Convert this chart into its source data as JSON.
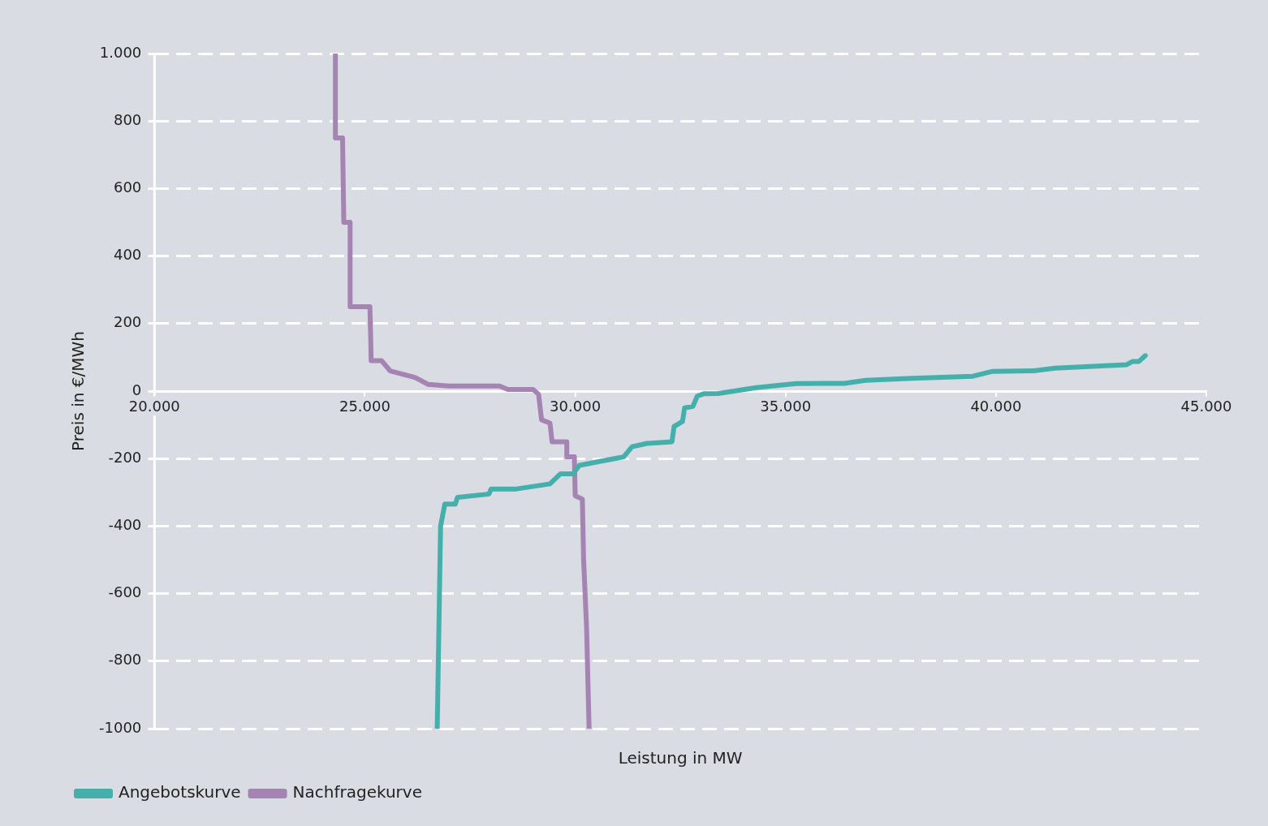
{
  "chart_data": {
    "type": "line",
    "xlabel": "Leistung in MW",
    "ylabel": "Preis in €/MWh",
    "xlim": [
      20000,
      45000
    ],
    "xticks": [
      {
        "value": 20000,
        "label": "20.000"
      },
      {
        "value": 25000,
        "label": "25.000"
      },
      {
        "value": 30000,
        "label": "30.000"
      },
      {
        "value": 35000,
        "label": "35.000"
      },
      {
        "value": 40000,
        "label": "40.000"
      },
      {
        "value": 45000,
        "label": "45.000"
      }
    ],
    "ylim": [
      -1000,
      1000
    ],
    "yticks": [
      -1000,
      -800,
      -600,
      -400,
      -200,
      0,
      200,
      400,
      600,
      {
        "value": 800,
        "label": "800"
      },
      {
        "value": 1000,
        "label": "1.000"
      }
    ],
    "grid": "y",
    "legend": "bottom left",
    "line_style": "solid",
    "marker": "none",
    "series": [
      {
        "name": "Angebotskurve",
        "color": "#45b0ab",
        "x": [
          26720,
          26800,
          26900,
          27150,
          27200,
          27950,
          28000,
          28600,
          29400,
          29650,
          29950,
          30100,
          31150,
          31350,
          31700,
          32300,
          32350,
          32550,
          32600,
          32800,
          32900,
          33050,
          33400,
          34300,
          35250,
          36400,
          36900,
          38000,
          39450,
          39900,
          40900,
          41400,
          42100,
          43100,
          43250,
          43400,
          43550
        ],
        "values": [
          -1000,
          -400,
          -335,
          -335,
          -315,
          -305,
          -290,
          -290,
          -275,
          -245,
          -245,
          -220,
          -195,
          -165,
          -155,
          -150,
          -105,
          -90,
          -50,
          -45,
          -15,
          -8,
          -7,
          10,
          22,
          23,
          32,
          38,
          44,
          58,
          60,
          68,
          72,
          78,
          88,
          88,
          105
        ]
      },
      {
        "name": "Nachfragekurve",
        "color": "#a583b3",
        "x": [
          24300,
          24300,
          24470,
          24500,
          24650,
          24650,
          25120,
          25140,
          25150,
          25400,
          25600,
          26200,
          26500,
          27000,
          28200,
          28400,
          29000,
          29130,
          29200,
          29400,
          29450,
          29800,
          29800,
          29980,
          30000,
          30170,
          30200,
          30270,
          30330
        ],
        "values": [
          1000,
          750,
          750,
          500,
          500,
          250,
          250,
          150,
          90,
          90,
          60,
          40,
          20,
          15,
          15,
          5,
          5,
          -10,
          -85,
          -95,
          -150,
          -150,
          -195,
          -195,
          -310,
          -320,
          -500,
          -700,
          -1000
        ]
      }
    ]
  }
}
